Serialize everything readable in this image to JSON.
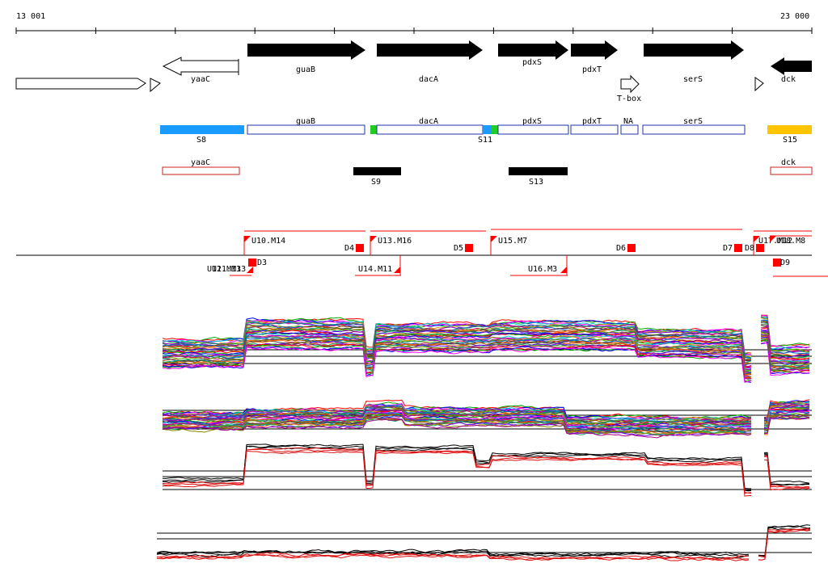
{
  "ruler": {
    "start_label": "13 001",
    "end_label": "23 000"
  },
  "genes_top": [
    {
      "label": "",
      "strand": "+",
      "style": "outline"
    },
    {
      "label": "yaaC",
      "strand": "-",
      "style": "outline"
    },
    {
      "label": "guaB",
      "strand": "+",
      "style": "filled"
    },
    {
      "label": "dacA",
      "strand": "+",
      "style": "filled"
    },
    {
      "label": "pdxS",
      "strand": "+",
      "style": "filled"
    },
    {
      "label": "pdxT",
      "strand": "+",
      "style": "filled"
    },
    {
      "label": "serS",
      "strand": "+",
      "style": "filled"
    },
    {
      "label": "dck",
      "strand": "-",
      "style": "filled"
    }
  ],
  "riboswitch_label": "T-box",
  "segments_row1": [
    {
      "label": "S8",
      "color": "#1a9bff"
    },
    {
      "label": "guaB",
      "color": "#2233aa"
    },
    {
      "label": "dacA",
      "color": "#2233aa"
    },
    {
      "label": "S11",
      "color": "#1a9bff"
    },
    {
      "label": "pdxS",
      "color": "#2233aa"
    },
    {
      "label": "pdxT",
      "color": "#2233aa"
    },
    {
      "label": "NA",
      "color": "#2233aa"
    },
    {
      "label": "serS",
      "color": "#2233aa"
    },
    {
      "label": "S15",
      "color": "#ffc400"
    }
  ],
  "segments_row2": [
    {
      "label": "yaaC",
      "color": "#cc2222"
    },
    {
      "label": "S9",
      "color": "#000000"
    },
    {
      "label": "S13",
      "color": "#000000"
    },
    {
      "label": "dck",
      "color": "#cc2222"
    }
  ],
  "features_upper": [
    "U10.M14",
    "U13.M16",
    "U15.M7",
    "U17.M12",
    "U18.M8"
  ],
  "features_downs": [
    "D4",
    "D5",
    "D6",
    "D7",
    "D8"
  ],
  "features_lower": [
    "U11.M13",
    "U12.M13",
    "D3",
    "U14.M11",
    "U16.M3",
    "D9"
  ],
  "colors": {
    "feature": "#ff0000",
    "profile_red": "#dd1111",
    "profile_black": "#000000"
  }
}
